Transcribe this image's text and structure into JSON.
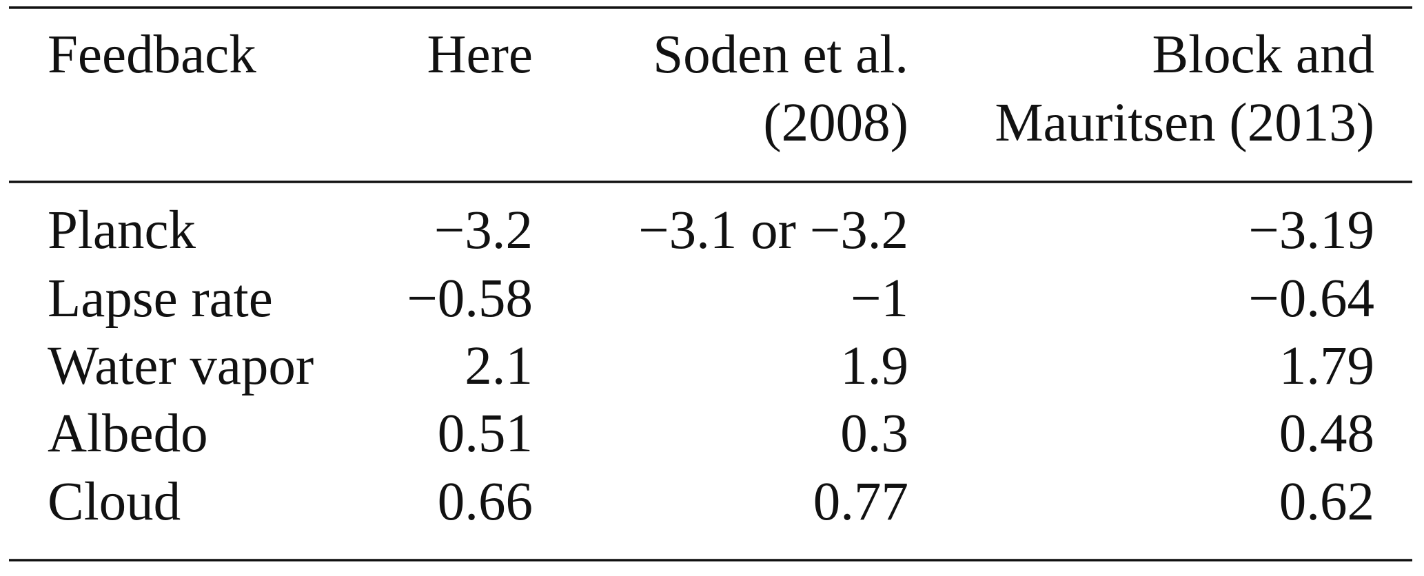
{
  "table": {
    "header": [
      [
        "Feedback"
      ],
      [
        "Here"
      ],
      [
        "Soden et al.",
        "(2008)"
      ],
      [
        "Block and",
        "Mauritsen (2013)"
      ]
    ],
    "rows": [
      [
        "Planck",
        "−3.2",
        "−3.1 or −3.2",
        "−3.19"
      ],
      [
        "Lapse rate",
        "−0.58",
        "−1",
        "−0.64"
      ],
      [
        "Water vapor",
        "2.1",
        "1.9",
        "1.79"
      ],
      [
        "Albedo",
        "0.51",
        "0.3",
        "0.48"
      ],
      [
        "Cloud",
        "0.66",
        "0.77",
        "0.62"
      ]
    ]
  }
}
